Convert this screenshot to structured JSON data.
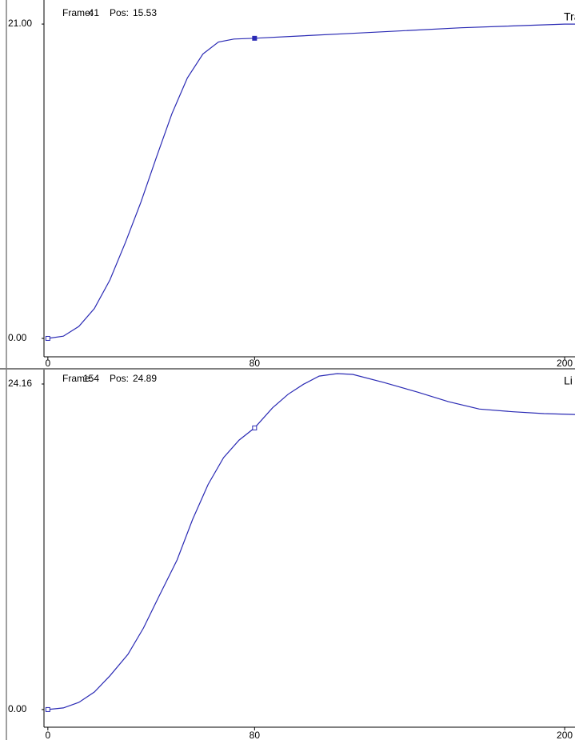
{
  "chart_data": [
    {
      "type": "line",
      "title": "Track",
      "status": {
        "frame_label": "Frame:",
        "frame": 41,
        "pos_label": "Pos:",
        "pos": 15.53
      },
      "x": [
        0,
        6,
        12,
        18,
        24,
        30,
        36,
        42,
        48,
        54,
        60,
        66,
        72,
        80,
        120,
        160,
        200,
        204
      ],
      "values": [
        0,
        0.15,
        0.8,
        2.0,
        3.9,
        6.4,
        9.1,
        12.1,
        15.0,
        17.4,
        19.0,
        19.8,
        20.0,
        20.05,
        20.4,
        20.75,
        21.0,
        21.0
      ],
      "color": "#2a2ab4",
      "xlim": [
        -1.5,
        204
      ],
      "xticks": [
        0,
        80,
        200
      ],
      "ylim": [
        -1.23,
        22.34
      ],
      "yticks": [
        {
          "value": 0,
          "label": "0.00"
        },
        {
          "value": 21,
          "label": "21.00"
        }
      ]
    },
    {
      "type": "line",
      "title": "Li",
      "status": {
        "frame_label": "Frame:",
        "frame": 154,
        "pos_label": "Pos:",
        "pos": 24.89
      },
      "x": [
        0,
        6,
        12,
        18,
        24,
        31,
        37,
        43,
        50,
        56,
        62,
        68,
        74,
        80,
        87,
        93,
        99,
        105,
        112,
        118,
        130,
        143,
        155,
        167,
        180,
        192,
        204
      ],
      "values": [
        0,
        0.12,
        0.53,
        1.3,
        2.5,
        4.1,
        6.05,
        8.4,
        11.1,
        14.1,
        16.7,
        18.7,
        20.0,
        20.9,
        22.4,
        23.4,
        24.15,
        24.75,
        24.93,
        24.87,
        24.27,
        23.56,
        22.85,
        22.3,
        22.1,
        21.96,
        21.9
      ],
      "color": "#2a2ab4",
      "xlim": [
        -1.5,
        204
      ],
      "xticks": [
        0,
        80,
        200
      ],
      "ylim": [
        -1.31,
        25.05
      ],
      "yticks": [
        {
          "value": 0,
          "label": "0.00"
        },
        24.16
      ]
    }
  ]
}
